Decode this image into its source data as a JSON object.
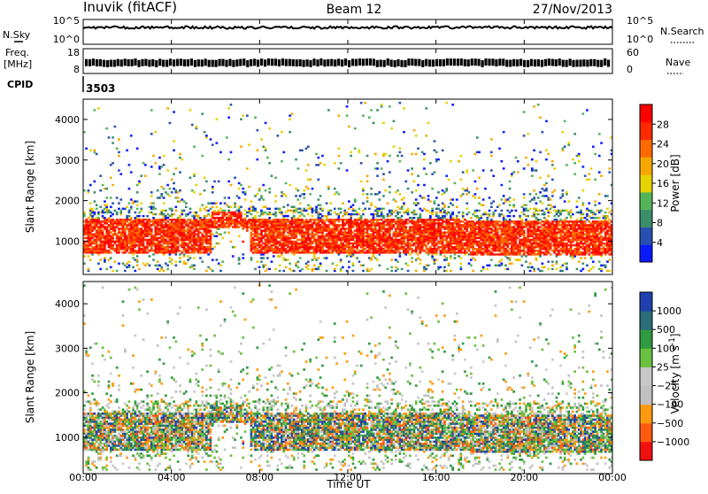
{
  "header": {
    "radar": "Inuvik (fitACF)",
    "beam": "Beam 12",
    "date": "27/Nov/2013"
  },
  "strips": {
    "nsky_label": "N.Sky",
    "nsky_ticks": [
      "10^5",
      "10^0"
    ],
    "nsearch_label": "N.Search",
    "nsearch_ticks": [
      "10^5",
      "10^0"
    ],
    "freq_label_1": "Freq.",
    "freq_label_2": "[MHz]",
    "freq_ticks": [
      "18",
      "8"
    ],
    "nave_label": "Nave",
    "nave_ticks": [
      "60",
      "0"
    ],
    "cpid_label": "CPID",
    "cpid_value": "3503"
  },
  "colors": {
    "power_scale": [
      "#0a1aff",
      "#2850b0",
      "#3a8e6a",
      "#54b45a",
      "#e6d200",
      "#f7a800",
      "#ff6a00",
      "#ff2a00",
      "#ff0000"
    ],
    "velocity_scale": [
      "#f01010",
      "#ff5a10",
      "#ff9a10",
      "#c0c0c0",
      "#c8c8c8",
      "#6ac040",
      "#2f9a40",
      "#2a6e7a",
      "#2040b0"
    ]
  },
  "chart_data": [
    {
      "type": "heatmap",
      "name": "power",
      "ylabel": "Slant Range [km]",
      "xlabel": "Time UT",
      "x_ticks": [
        "00:00",
        "04:00",
        "08:00",
        "12:00",
        "16:00",
        "20:00",
        "00:00"
      ],
      "x_range_hours": [
        0,
        24
      ],
      "y_ticks": [
        1000,
        2000,
        3000,
        4000
      ],
      "ylim": [
        180,
        4500
      ],
      "colorbar_label": "Power [dB]",
      "colorbar_ticks": [
        "4",
        "8",
        "12",
        "16",
        "20",
        "24",
        "28"
      ],
      "colorbar_range": [
        0,
        30
      ]
    },
    {
      "type": "heatmap",
      "name": "velocity",
      "ylabel": "Slant Range [km]",
      "xlabel": "Time UT",
      "x_ticks": [
        "00:00",
        "04:00",
        "08:00",
        "12:00",
        "16:00",
        "20:00",
        "00:00"
      ],
      "x_range_hours": [
        0,
        24
      ],
      "y_ticks": [
        1000,
        2000,
        3000,
        4000
      ],
      "ylim": [
        180,
        4500
      ],
      "colorbar_label": "Velocity [m s",
      "colorbar_exponent": "-1",
      "colorbar_unit_close": "]",
      "colorbar_ticks": [
        "1000",
        "500",
        "100",
        "25",
        "−25",
        "−100",
        "−500",
        "−1000"
      ]
    }
  ]
}
